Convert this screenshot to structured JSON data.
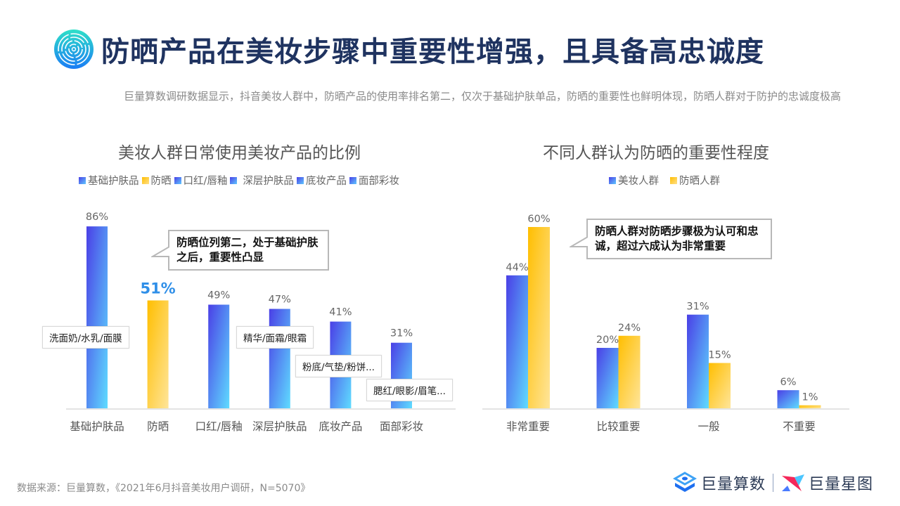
{
  "header": {
    "title": "防晒产品在美妆步骤中重要性增强，且具备高忠诚度",
    "subtitle": "巨量算数调研数据显示，抖音美妆人群中，防晒产品的使用率排名第二，仅次于基础护肤单品，防晒的重要性也鲜明体现，防晒人群对于防护的忠诚度极高",
    "logo_icon": "concentric-circles-icon"
  },
  "colors": {
    "title": "#1f3360",
    "blue_start": "#4a3fe6",
    "blue_end": "#5fc8ff",
    "yellow_start": "#ffbe00",
    "yellow_end": "#ffe08a",
    "highlight_label": "#2f8fe8"
  },
  "chart_data": [
    {
      "type": "bar",
      "title": "美妆人群日常使用美妆产品的比例",
      "categories": [
        "基础护肤品",
        "防晒",
        "口红/唇釉",
        "深层护肤品",
        "底妆产品",
        "面部彩妆"
      ],
      "values": [
        86,
        51,
        49,
        47,
        41,
        31
      ],
      "value_labels": [
        "86%",
        "51%",
        "49%",
        "47%",
        "41%",
        "31%"
      ],
      "highlight_index": 1,
      "legend": [
        "基础护肤品",
        "防晒",
        "口红/唇釉",
        "深层护肤品",
        "底妆产品",
        "面部彩妆"
      ],
      "legend_placement": "top",
      "xlabel": "",
      "ylabel": "",
      "ylim": [
        0,
        100
      ],
      "grid": false,
      "callout": "防晒位列第二，处于基础护肤之后，重要性凸显",
      "annotations": [
        "洗面奶/水乳/面膜",
        "精华/面霜/眼霜",
        "粉底/气垫/粉饼...",
        "腮红/眼影/眉笔..."
      ]
    },
    {
      "type": "bar",
      "title": "不同人群认为防晒的重要性程度",
      "categories": [
        "非常重要",
        "比较重要",
        "一般",
        "不重要"
      ],
      "series": [
        {
          "name": "美妆人群",
          "values": [
            44,
            20,
            31,
            6
          ],
          "labels": [
            "44%",
            "20%",
            "31%",
            "6%"
          ]
        },
        {
          "name": "防晒人群",
          "values": [
            60,
            24,
            15,
            1
          ],
          "labels": [
            "60%",
            "24%",
            "15%",
            "1%"
          ]
        }
      ],
      "legend_placement": "top",
      "xlabel": "",
      "ylabel": "",
      "ylim": [
        0,
        70
      ],
      "grid": false,
      "callout": "防晒人群对防晒步骤极为认可和忠诚，超过六成认为非常重要"
    }
  ],
  "footer": {
    "source": "数据来源：巨量算数，《2021年6月抖音美妆用户调研，N=5070》",
    "brand1": "巨量算数",
    "brand2": "巨量星图"
  }
}
